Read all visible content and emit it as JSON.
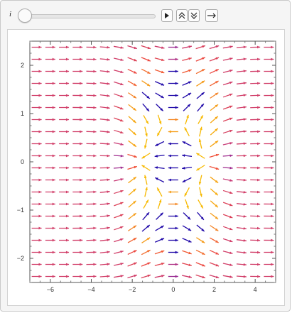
{
  "controls": {
    "parameter_label": "i",
    "slider_value": 0,
    "play_icon": "play-icon",
    "faster_icon": "double-chevron-up-icon",
    "slower_icon": "double-chevron-down-icon",
    "direction_icon": "arrow-right-icon"
  },
  "chart_data": {
    "type": "vector-field",
    "title": "",
    "xlabel": "",
    "ylabel": "",
    "xlim": [
      -7,
      5
    ],
    "ylim": [
      -2.5,
      2.5
    ],
    "xticks": [
      "−6",
      "−4",
      "−2",
      "0",
      "2",
      "4"
    ],
    "yticks": [
      "−2",
      "−1",
      "0",
      "1",
      "2"
    ],
    "grid": false,
    "color_scheme": [
      "#0000aa",
      "#7a1fa2",
      "#c73a78",
      "#f04a3a",
      "#f59a1c",
      "#f7b900"
    ],
    "description_of_field": "arrows point mostly rightward; near the origin the field turns around two curved bands"
  }
}
